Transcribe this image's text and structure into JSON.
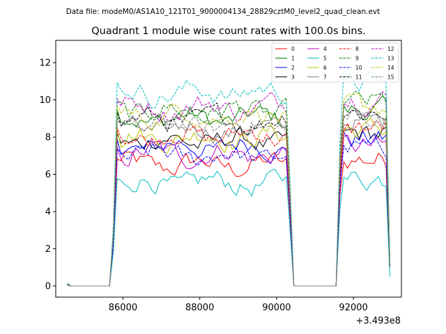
{
  "chart_data": {
    "type": "line",
    "suptitle": "Data file: modeM0/AS1A10_121T01_9000004134_28829cztM0_level2_quad_clean.evt",
    "title": "Quadrant 1 module wise count rates with 100.0s bins.",
    "xlabel": "",
    "ylabel": "",
    "x_offset_label": "+3.493e8",
    "x_offset": 349300000,
    "xlim": [
      84250,
      93250
    ],
    "ylim": [
      -0.6,
      13.2
    ],
    "xticks": [
      86000,
      88000,
      90000,
      92000
    ],
    "xtick_labels": [
      "86000",
      "88000",
      "90000",
      "92000"
    ],
    "yticks": [
      0,
      2,
      4,
      6,
      8,
      10,
      12
    ],
    "ytick_labels": [
      "0",
      "2",
      "4",
      "6",
      "8",
      "10",
      "12"
    ],
    "legend_position": "top-right",
    "segments": [
      {
        "start": 84550,
        "end": 85650,
        "n": 12
      },
      {
        "start": 85750,
        "end": 90350,
        "n": 47
      },
      {
        "start": 90450,
        "end": 91550,
        "n": 12
      },
      {
        "start": 91650,
        "end": 92950,
        "n": 14
      }
    ],
    "series": [
      {
        "name": "0",
        "color": "#ff0000",
        "dash": "solid",
        "mean": 6.5,
        "flat_start": 0.1,
        "end_value": 1.0
      },
      {
        "name": "1",
        "color": "#008000",
        "dash": "solid",
        "mean": 9.0,
        "flat_start": 0.05,
        "end_value": 1.2
      },
      {
        "name": "2",
        "color": "#0000ff",
        "dash": "solid",
        "mean": 7.5,
        "flat_start": 0.05,
        "end_value": 1.0
      },
      {
        "name": "3",
        "color": "#000000",
        "dash": "solid",
        "mean": 7.8,
        "flat_start": 0.05,
        "end_value": 1.0
      },
      {
        "name": "4",
        "color": "#bf00bf",
        "dash": "solid",
        "mean": 7.1,
        "flat_start": 0.05,
        "end_value": 1.0
      },
      {
        "name": "5",
        "color": "#00bfbf",
        "dash": "solid",
        "mean": 5.5,
        "flat_start": 0.15,
        "end_value": 0.5
      },
      {
        "name": "6",
        "color": "#bfbf00",
        "dash": "solid",
        "mean": 8.0,
        "flat_start": 0.05,
        "end_value": 1.0
      },
      {
        "name": "7",
        "color": "#808080",
        "dash": "solid",
        "mean": 8.4,
        "flat_start": 0.05,
        "end_value": 1.0
      },
      {
        "name": "8",
        "color": "#ff0000",
        "dash": "dashed",
        "mean": 8.1,
        "flat_start": 0.05,
        "end_value": 1.2
      },
      {
        "name": "9",
        "color": "#008000",
        "dash": "dashed",
        "mean": 9.4,
        "flat_start": 0.05,
        "end_value": 1.2
      },
      {
        "name": "10",
        "color": "#0000ff",
        "dash": "dashed",
        "mean": 7.0,
        "flat_start": 0.05,
        "end_value": 1.0
      },
      {
        "name": "11",
        "color": "#000000",
        "dash": "dashed",
        "mean": 8.9,
        "flat_start": 0.05,
        "end_value": 1.0
      },
      {
        "name": "12",
        "color": "#bf00bf",
        "dash": "dashed",
        "mean": 9.6,
        "flat_start": 0.05,
        "end_value": 1.2
      },
      {
        "name": "13",
        "color": "#00bfbf",
        "dash": "dashed",
        "mean": 10.4,
        "flat_start": 0.05,
        "end_value": 1.2
      },
      {
        "name": "14",
        "color": "#bfbf00",
        "dash": "dashed",
        "mean": 9.2,
        "flat_start": 0.05,
        "end_value": 1.2
      },
      {
        "name": "15",
        "color": "#808080",
        "dash": "dashed",
        "mean": 8.6,
        "flat_start": 0.05,
        "end_value": 1.0
      }
    ]
  }
}
